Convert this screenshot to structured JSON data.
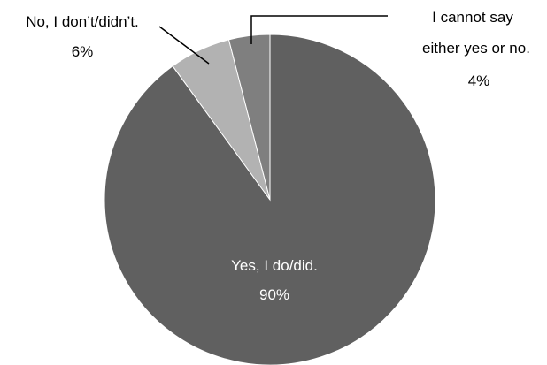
{
  "chart_data": {
    "type": "pie",
    "title": "",
    "slices": [
      {
        "label": "Yes, I do/did.",
        "value": 90,
        "value_label": "90%",
        "color": "#606060"
      },
      {
        "label": "No, I don’t/didn’t.",
        "value": 6,
        "value_label": "6%",
        "color": "#b2b2b2"
      },
      {
        "label": "I cannot say either yes or no.",
        "label_lines": [
          "I cannot say",
          "either yes or no."
        ],
        "value": 4,
        "value_label": "4%",
        "color": "#7f7f7f"
      }
    ],
    "start_angle_deg": 0,
    "direction": "counterclockwise-from-top-for-small-slices"
  }
}
